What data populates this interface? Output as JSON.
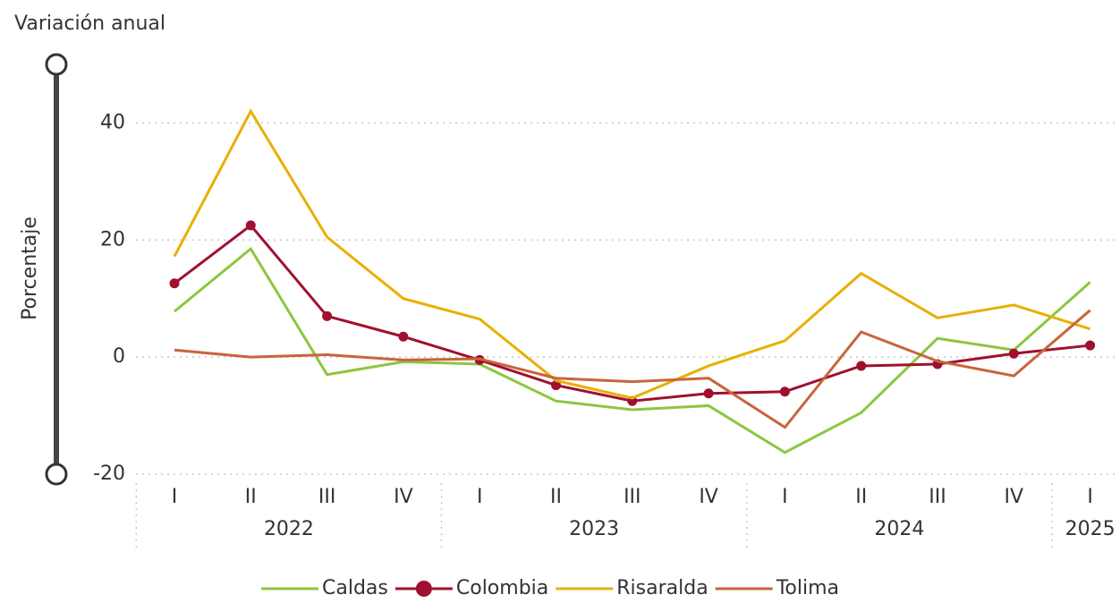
{
  "chart_data": {
    "type": "line",
    "y_axis_title": "Variación anual",
    "ylabel": "Porcentaje",
    "categories": [
      "I",
      "II",
      "III",
      "IV",
      "I",
      "II",
      "III",
      "IV",
      "I",
      "II",
      "III",
      "IV",
      "I"
    ],
    "years": [
      "2022",
      "2022",
      "2022",
      "2022",
      "2023",
      "2023",
      "2023",
      "2023",
      "2024",
      "2024",
      "2024",
      "2024",
      "2025"
    ],
    "series": [
      {
        "name": "Caldas",
        "color": "#8dc63f",
        "values": [
          7.8,
          18.5,
          -3,
          -0.8,
          -1.2,
          -7.5,
          -9,
          -8.3,
          -16.3,
          -9.5,
          3.2,
          1.2,
          12.8
        ]
      },
      {
        "name": "Colombia",
        "color": "#a0102e",
        "markers": true,
        "values": [
          12.6,
          22.5,
          7,
          3.5,
          -0.5,
          -4.8,
          -7.5,
          -6.2,
          -5.9,
          -1.5,
          -1.2,
          0.6,
          2
        ]
      },
      {
        "name": "Risaralda",
        "color": "#e8b000",
        "values": [
          17.2,
          42,
          20.5,
          10,
          6.5,
          -4,
          -7,
          -1.5,
          2.8,
          14.3,
          6.7,
          8.9,
          4.8
        ]
      },
      {
        "name": "Tolima",
        "color": "#c8643c",
        "values": [
          1.2,
          0,
          0.4,
          -0.5,
          -0.3,
          -3.6,
          -4.2,
          -3.6,
          -12,
          4.3,
          -0.7,
          -3.2,
          8
        ]
      }
    ],
    "ylim": [
      -20,
      50
    ],
    "yticks": [
      -20,
      0,
      20,
      40
    ],
    "grid": true,
    "legend": "bottom"
  }
}
